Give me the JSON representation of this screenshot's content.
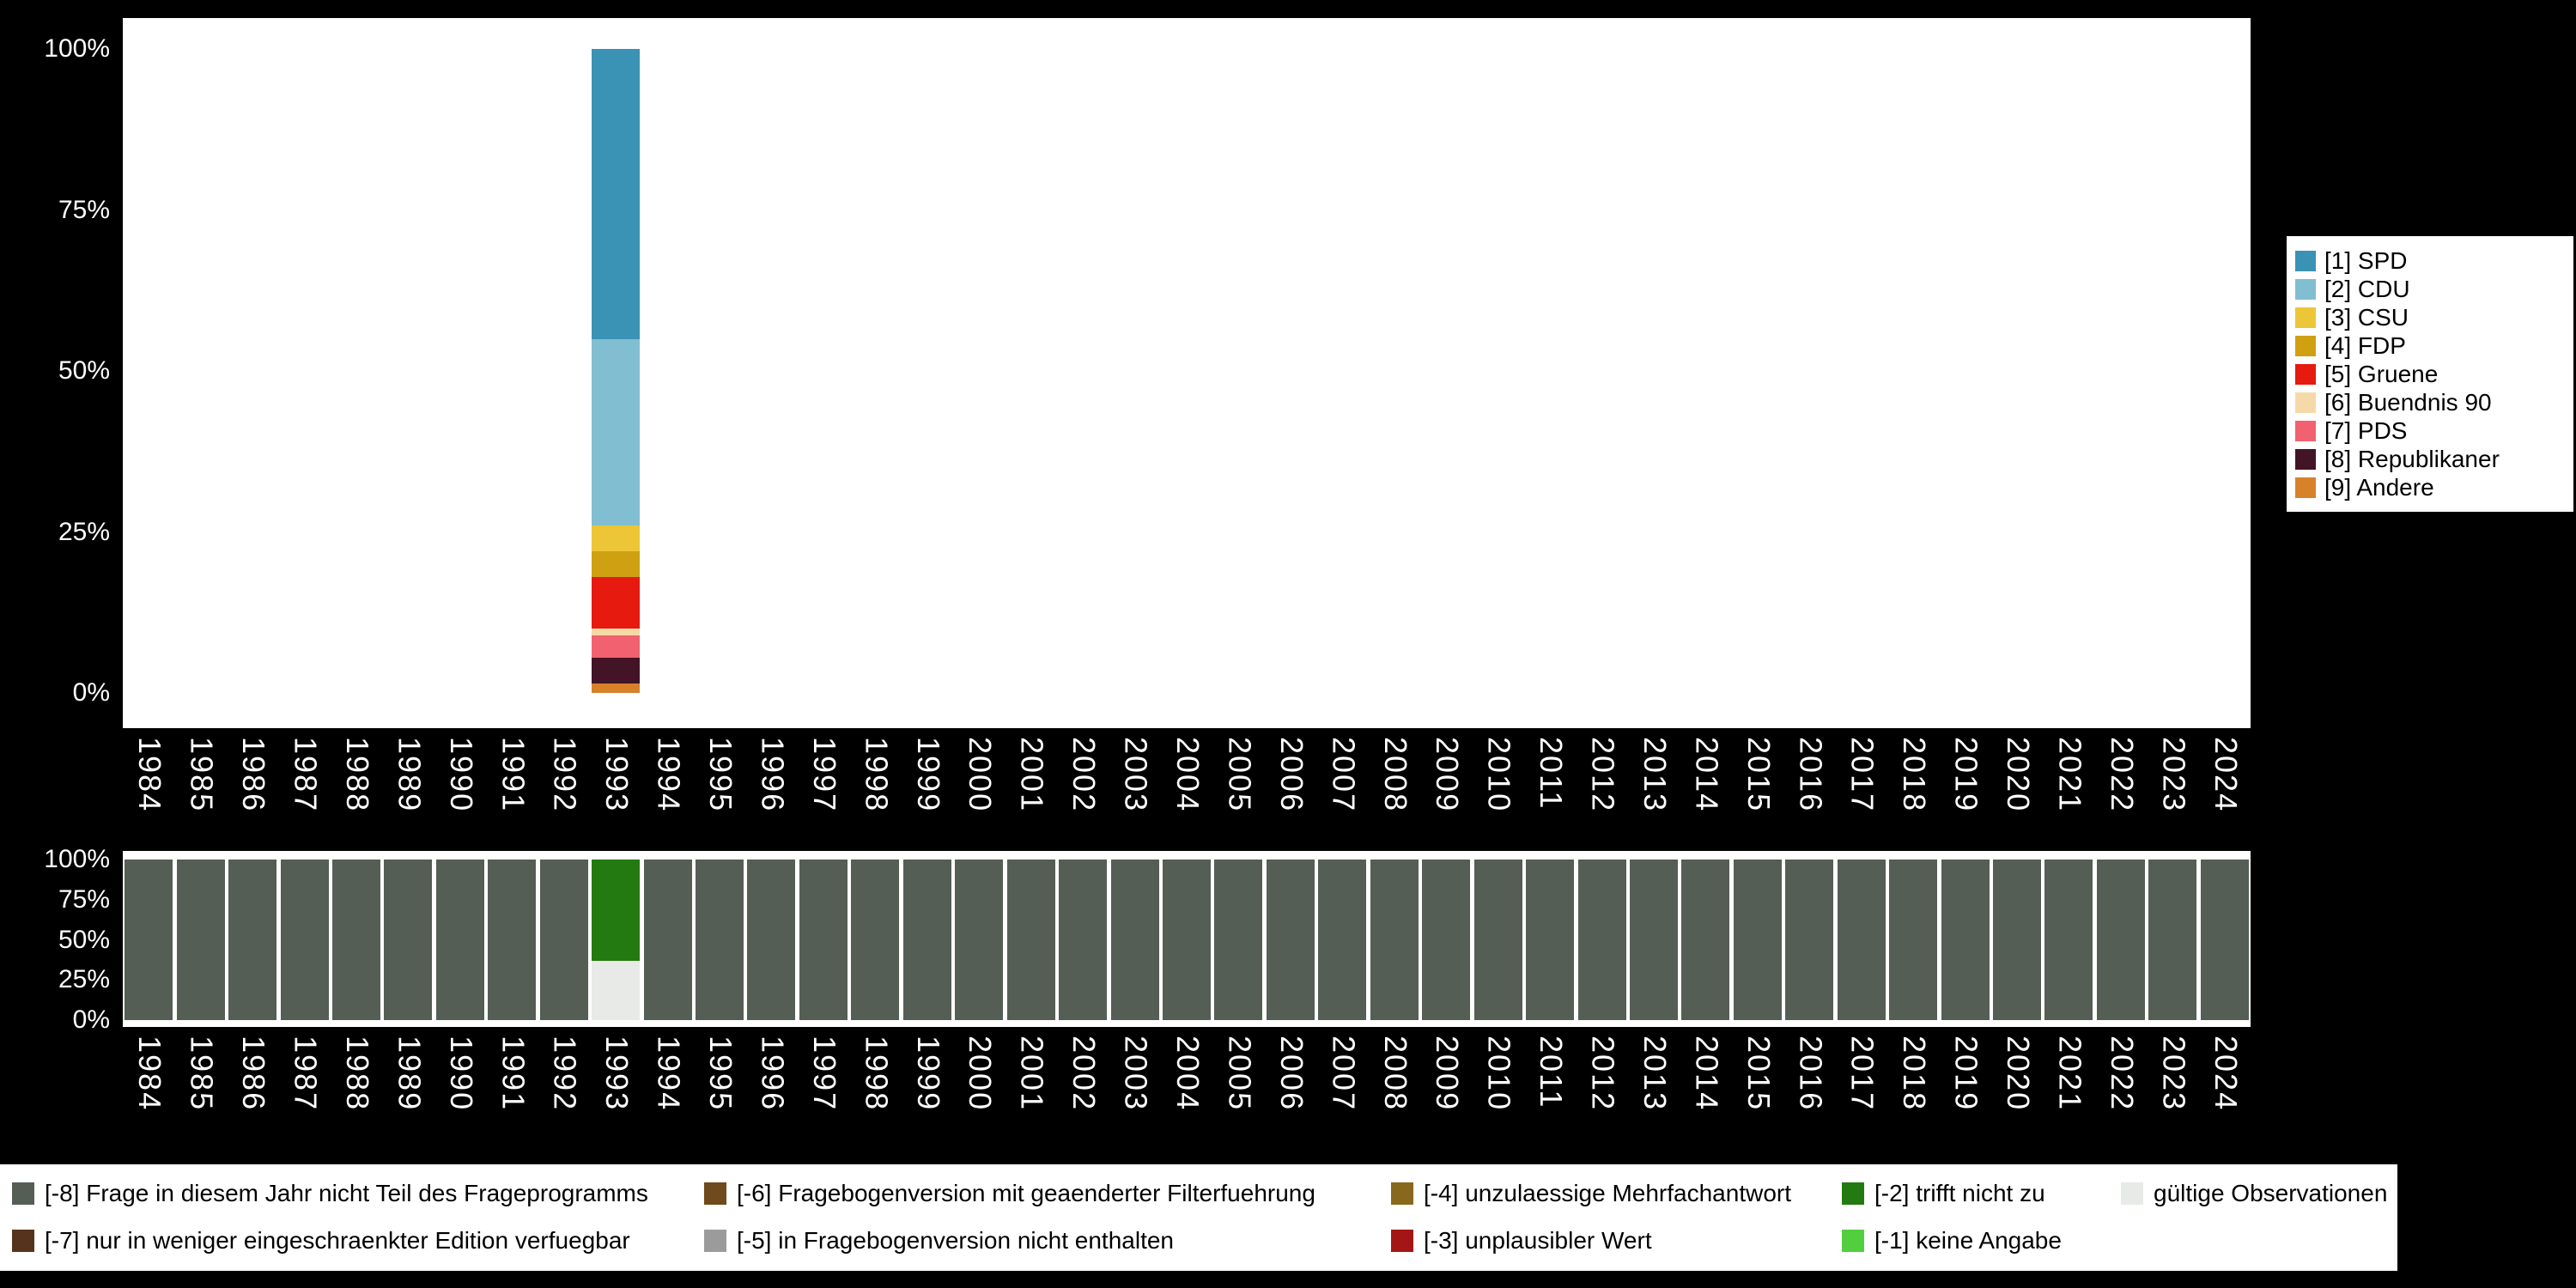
{
  "page": {
    "background": "#000000",
    "panel": "#ffffff",
    "axis_text_color": "#ffffff",
    "legend_text_color": "#000000"
  },
  "chart_data": [
    {
      "id": "party-distribution",
      "type": "bar",
      "stacked": true,
      "title": "",
      "xlabel": "",
      "ylabel": "",
      "ylim": [
        0,
        100
      ],
      "grid": false,
      "legend_position": "right",
      "x": [
        "1984",
        "1985",
        "1986",
        "1987",
        "1988",
        "1989",
        "1990",
        "1991",
        "1992",
        "1993",
        "1994",
        "1995",
        "1996",
        "1997",
        "1998",
        "1999",
        "2000",
        "2001",
        "2002",
        "2003",
        "2004",
        "2005",
        "2006",
        "2007",
        "2008",
        "2009",
        "2010",
        "2011",
        "2012",
        "2013",
        "2014",
        "2015",
        "2016",
        "2017",
        "2018",
        "2019",
        "2020",
        "2021",
        "2022",
        "2023",
        "2024"
      ],
      "yticks": [
        {
          "label": "100%",
          "value": 100
        },
        {
          "label": "75%",
          "value": 75
        },
        {
          "label": "50%",
          "value": 50
        },
        {
          "label": "25%",
          "value": 25
        },
        {
          "label": "0%",
          "value": 0
        }
      ],
      "series": [
        {
          "name": "[1] SPD",
          "color": "#3a92b4",
          "default": 0,
          "points": {
            "1993": 45
          }
        },
        {
          "name": "[2] CDU",
          "color": "#81bed2",
          "default": 0,
          "points": {
            "1993": 29
          }
        },
        {
          "name": "[3] CSU",
          "color": "#ecc636",
          "default": 0,
          "points": {
            "1993": 4
          }
        },
        {
          "name": "[4] FDP",
          "color": "#d0a013",
          "default": 0,
          "points": {
            "1993": 4
          }
        },
        {
          "name": "[5] Gruene",
          "color": "#e61a0e",
          "default": 0,
          "points": {
            "1993": 8
          }
        },
        {
          "name": "[6] Buendnis 90",
          "color": "#f6d9a9",
          "default": 0,
          "points": {
            "1993": 1
          }
        },
        {
          "name": "[7] PDS",
          "color": "#f2616f",
          "default": 0,
          "points": {
            "1993": 3.5
          }
        },
        {
          "name": "[8] Republikaner",
          "color": "#421425",
          "default": 0,
          "points": {
            "1993": 4
          }
        },
        {
          "name": "[9] Andere",
          "color": "#d7812b",
          "default": 0,
          "points": {
            "1993": 1.5
          }
        }
      ]
    },
    {
      "id": "missing-values",
      "type": "bar",
      "stacked": true,
      "title": "",
      "xlabel": "",
      "ylabel": "",
      "ylim": [
        0,
        100
      ],
      "grid": false,
      "legend_position": "bottom",
      "x": [
        "1984",
        "1985",
        "1986",
        "1987",
        "1988",
        "1989",
        "1990",
        "1991",
        "1992",
        "1993",
        "1994",
        "1995",
        "1996",
        "1997",
        "1998",
        "1999",
        "2000",
        "2001",
        "2002",
        "2003",
        "2004",
        "2005",
        "2006",
        "2007",
        "2008",
        "2009",
        "2010",
        "2011",
        "2012",
        "2013",
        "2014",
        "2015",
        "2016",
        "2017",
        "2018",
        "2019",
        "2020",
        "2021",
        "2022",
        "2023",
        "2024"
      ],
      "yticks": [
        {
          "label": "100%",
          "value": 100
        },
        {
          "label": "75%",
          "value": 75
        },
        {
          "label": "50%",
          "value": 50
        },
        {
          "label": "25%",
          "value": 25
        },
        {
          "label": "0%",
          "value": 0
        }
      ],
      "series": [
        {
          "name": "[-8] Frage in diesem Jahr nicht Teil des Frageprogramms",
          "color": "#545e55",
          "default": 100,
          "points": {
            "1993": 0
          }
        },
        {
          "name": "[-2] trifft nicht zu",
          "color": "#237a10",
          "default": 0,
          "points": {
            "1993": 63
          }
        },
        {
          "name": "gültige Observationen",
          "color": "#e7eae6",
          "default": 0,
          "points": {
            "1993": 37
          }
        }
      ]
    }
  ],
  "legend_right": {
    "items": [
      {
        "label": "[1] SPD",
        "color": "#3a92b4"
      },
      {
        "label": "[2] CDU",
        "color": "#81bed2"
      },
      {
        "label": "[3] CSU",
        "color": "#ecc636"
      },
      {
        "label": "[4] FDP",
        "color": "#d0a013"
      },
      {
        "label": "[5] Gruene",
        "color": "#e61a0e"
      },
      {
        "label": "[6] Buendnis 90",
        "color": "#f6d9a9"
      },
      {
        "label": "[7] PDS",
        "color": "#f2616f"
      },
      {
        "label": "[8] Republikaner",
        "color": "#421425"
      },
      {
        "label": "[9] Andere",
        "color": "#d7812b"
      }
    ]
  },
  "legend_bottom": {
    "columns": [
      {
        "items": [
          {
            "label": "[-8] Frage in diesem Jahr nicht Teil des Frageprogramms",
            "color": "#545e55"
          },
          {
            "label": "[-7] nur in weniger eingeschraenkter Edition verfuegbar",
            "color": "#56331c"
          }
        ]
      },
      {
        "items": [
          {
            "label": "[-6] Fragebogenversion mit geaenderter Filterfuehrung",
            "color": "#6e4a1c"
          },
          {
            "label": "[-5] in Fragebogenversion nicht enthalten",
            "color": "#9b9b9b"
          }
        ]
      },
      {
        "items": [
          {
            "label": "[-4] unzulaessige Mehrfachantwort",
            "color": "#87681c"
          },
          {
            "label": "[-3] unplausibler Wert",
            "color": "#a31616"
          }
        ]
      },
      {
        "items": [
          {
            "label": "[-2] trifft nicht zu",
            "color": "#237a10"
          },
          {
            "label": "[-1] keine Angabe",
            "color": "#52ce3f"
          }
        ]
      },
      {
        "items": [
          {
            "label": "gültige Observationen",
            "color": "#e7eae6"
          }
        ]
      }
    ]
  }
}
